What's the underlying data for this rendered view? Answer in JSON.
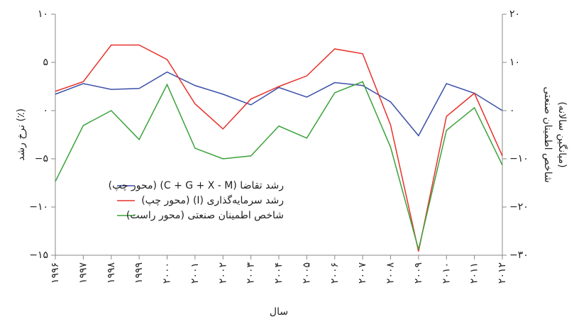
{
  "chart_data": {
    "type": "line",
    "y_label": "نرخ رشد (٪)",
    "y2_label": [
      "شاخص اطمینان صنعتی",
      "(میانگین سالانه)"
    ],
    "x_label": "سال",
    "categories": [
      "۱۹۹۶",
      "۱۹۹۷",
      "۱۹۹۸",
      "۱۹۹۹",
      "۲۰۰۰",
      "۲۰۰۱",
      "۲۰۰۲",
      "۲۰۰۳",
      "۲۰۰۴",
      "۲۰۰۵",
      "۲۰۰۶",
      "۲۰۰۷",
      "۲۰۰۸",
      "۲۰۰۹",
      "۲۰۱۰",
      "۲۰۱۱",
      "۲۰۱۲"
    ],
    "ylim": [
      -15,
      10
    ],
    "yticks": [
      {
        "value": 10,
        "label": "۱۰"
      },
      {
        "value": 5,
        "label": "۵"
      },
      {
        "value": 0,
        "label": "۰"
      },
      {
        "value": -5,
        "label": "−۵"
      },
      {
        "value": -10,
        "label": "−۱۰"
      },
      {
        "value": -15,
        "label": "−۱۵"
      }
    ],
    "y2lim": [
      -30,
      20
    ],
    "y2ticks": [
      {
        "value": 20,
        "label": "۲۰"
      },
      {
        "value": 10,
        "label": "۱۰"
      },
      {
        "value": 0,
        "label": "۰"
      },
      {
        "value": -10,
        "label": "−۱۰"
      },
      {
        "value": -20,
        "label": "−۲۰"
      },
      {
        "value": -30,
        "label": "−۳۰"
      }
    ],
    "series": [
      {
        "name": "رشد تقاضا (C + G + X - M) (محور چپ)",
        "color": "#3a4fa8",
        "values": [
          1.7,
          2.8,
          2.2,
          2.3,
          4.0,
          2.6,
          1.7,
          0.6,
          2.4,
          1.4,
          2.9,
          2.6,
          0.9,
          -2.6,
          2.8,
          1.8,
          0.0
        ]
      },
      {
        "name": "رشد سرمایه‌گذاری (I) (محور چپ)",
        "color": "#e8312a",
        "values": [
          2.0,
          3.0,
          6.8,
          6.8,
          5.3,
          0.7,
          -1.9,
          1.2,
          2.5,
          3.6,
          6.4,
          5.9,
          -1.5,
          -14.6,
          -0.6,
          1.8,
          -4.7
        ]
      },
      {
        "name": "شاخص اطمینان صنعتی (محور راست)",
        "color": "#3aa23a",
        "axis": "y2",
        "values": [
          -14.7,
          -3.1,
          0,
          -6.0,
          5.4,
          -7.8,
          -10,
          -9.4,
          -3.2,
          -5.7,
          3.7,
          6.0,
          -7.6,
          -28.8,
          -4.1,
          0.6,
          -11.3
        ]
      }
    ]
  }
}
